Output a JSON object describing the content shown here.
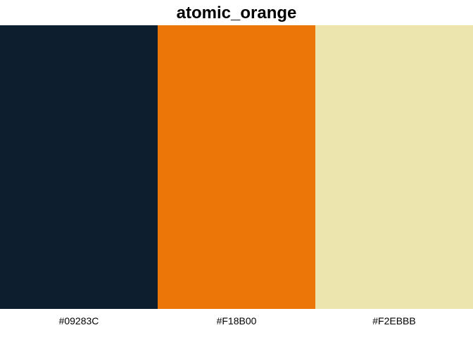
{
  "title": "atomic_orange",
  "palette": [
    {
      "hex_label": "#09283C",
      "color": "#0d1f2e"
    },
    {
      "hex_label": "#F18B00",
      "color": "#ec7608"
    },
    {
      "hex_label": "#F2EBBB",
      "color": "#ede5ae"
    }
  ]
}
